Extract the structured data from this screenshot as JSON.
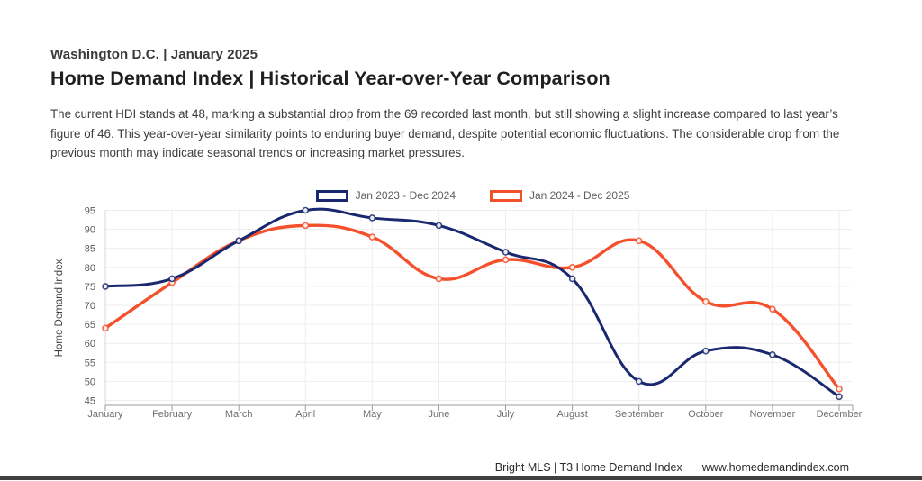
{
  "header": {
    "subtitle": "Washington D.C. | January 2025",
    "title": "Home Demand Index | Historical Year-over-Year Comparison"
  },
  "description": "The current HDI stands at 48, marking a substantial drop from the 69 recorded last month, but still showing a slight increase compared to last year’s figure of 46. This year-over-year similarity points to enduring buyer demand, despite potential economic fluctuations. The considerable drop from the previous month may indicate seasonal trends or increasing market pressures.",
  "chart_data": {
    "type": "line",
    "categories": [
      "January",
      "February",
      "March",
      "April",
      "May",
      "June",
      "July",
      "August",
      "September",
      "October",
      "November",
      "December"
    ],
    "series": [
      {
        "name": "Jan 2023 - Dec 2024",
        "color": "#1a296f",
        "values": [
          75,
          77,
          87,
          95,
          93,
          91,
          84,
          77,
          50,
          58,
          57,
          46
        ]
      },
      {
        "name": "Jan 2024 - Dec 2025",
        "color": "#f4502b",
        "values": [
          64,
          76,
          87,
          91,
          88,
          77,
          82,
          80,
          87,
          71,
          69,
          48
        ]
      }
    ],
    "ylabel": "Home Demand Index",
    "ylim": [
      45,
      95
    ],
    "ytick_step": 5,
    "grid": true,
    "legend_position": "top",
    "line_smoothing": true,
    "marker": "open-circle"
  },
  "footer": {
    "attribution": "Bright MLS | T3 Home Demand Index",
    "website": "www.homedemandindex.com"
  },
  "colors": {
    "series_navy": "#1a296f",
    "series_red": "#f4502b",
    "grid": "#ededed",
    "axis_line": "#9b9b9b",
    "y_axis_line": "#d9d9d9",
    "tick_label": "#58595b",
    "month_label": "#6f6f6f",
    "bottom_bar": "#414141"
  }
}
